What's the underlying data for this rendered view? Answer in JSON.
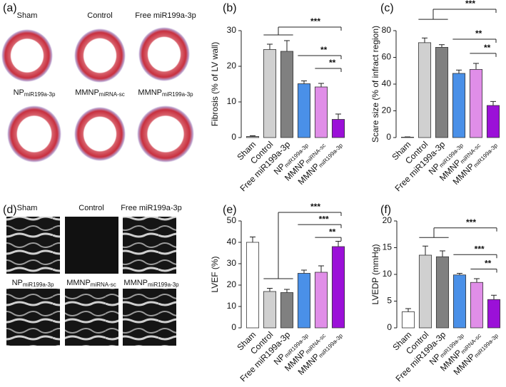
{
  "panels": [
    {
      "label": "(a)",
      "captions": [
        "Sham",
        "Control",
        "Free miR199a-3p",
        {
          "label": "NP",
          "sub": "miR199a-3p"
        },
        {
          "label": "MMNP",
          "sub": "miRNA-sc"
        },
        {
          "label": "MMNP",
          "sub": "miR199a-3p"
        }
      ]
    },
    {
      "label": "(d)",
      "captions": [
        "Sham",
        "Control",
        "Free miR199a-3p",
        {
          "label": "NP",
          "sub": "miR199a-3p"
        },
        {
          "label": "MMNP",
          "sub": "miRNA-sc"
        },
        {
          "label": "MMNP",
          "sub": "miR199a-3p"
        }
      ]
    }
  ],
  "chart_data": [
    {
      "type": "bar",
      "label": "(b)",
      "ylabel": "Fibrosis (% of LV wall)",
      "categories": [
        "Sham",
        "Control",
        "Free miR199a-3p",
        {
          "label": "NP",
          "sub": "miR199a-3p"
        },
        {
          "label": "MMNP",
          "sub": "miRNA-sc"
        },
        {
          "label": "MMNP",
          "sub": "miR199a-3p"
        }
      ],
      "values": [
        0.3,
        24.7,
        24.2,
        15.1,
        14.2,
        5.1
      ],
      "errors": [
        0.2,
        1.5,
        3.0,
        0.8,
        1.0,
        1.5
      ],
      "colors": [
        "#bdbdbd",
        "#d0d0d0",
        "#808080",
        "#4a90e8",
        "#e08ee8",
        "#9b10d8"
      ],
      "ylim": [
        0,
        30
      ],
      "yticks": [
        0,
        10,
        20,
        30
      ],
      "annotations": [
        "***",
        "**",
        "**"
      ]
    },
    {
      "type": "bar",
      "label": "(c)",
      "ylabel": "Scare size (% of infract region)",
      "categories": [
        "Sham",
        "Control",
        "Free miR199a-3p",
        {
          "label": "NP",
          "sub": "miR199a-3p"
        },
        {
          "label": "MMNP",
          "sub": "miRNA-sc"
        },
        {
          "label": "MMNP",
          "sub": "miR199a-3p"
        }
      ],
      "values": [
        0.3,
        71,
        67.5,
        48,
        51,
        24
      ],
      "errors": [
        0.2,
        3.5,
        2.0,
        2.5,
        4.5,
        3.0
      ],
      "colors": [
        "#bdbdbd",
        "#d0d0d0",
        "#808080",
        "#4a90e8",
        "#e08ee8",
        "#9b10d8"
      ],
      "ylim": [
        0,
        80
      ],
      "yticks": [
        0,
        20,
        40,
        60,
        80
      ],
      "annotations": [
        "***",
        "**",
        "**"
      ]
    },
    {
      "type": "bar",
      "label": "(e)",
      "ylabel": "LVEF (%)",
      "categories": [
        "Sham",
        "Control",
        "Free miR199a-3p",
        {
          "label": "NP",
          "sub": "miR199a-3p"
        },
        {
          "label": "MMNP",
          "sub": "miRNA-sc"
        },
        {
          "label": "MMNP",
          "sub": "miR199a-3p"
        }
      ],
      "values": [
        40,
        17,
        16.5,
        25.5,
        26,
        38
      ],
      "errors": [
        2.5,
        1.5,
        1.5,
        1.5,
        3.0,
        2.5
      ],
      "colors": [
        "#ffffff",
        "#d0d0d0",
        "#808080",
        "#4a90e8",
        "#e08ee8",
        "#9b10d8"
      ],
      "ylim": [
        0,
        50
      ],
      "yticks": [
        0,
        10,
        20,
        30,
        40,
        50
      ],
      "annotations": [
        "***",
        "***",
        "**"
      ]
    },
    {
      "type": "bar",
      "label": "(f)",
      "ylabel": "LVEDP (mmHg)",
      "categories": [
        "Sham",
        "Control",
        "Free miR199a-3p",
        {
          "label": "NP",
          "sub": "miR199a-3p"
        },
        {
          "label": "MMNP",
          "sub": "miRNA-sc"
        },
        {
          "label": "MMNP",
          "sub": "miR199a-3p"
        }
      ],
      "values": [
        3,
        13.6,
        13.3,
        9.9,
        8.5,
        5.3
      ],
      "errors": [
        0.6,
        1.7,
        1.1,
        0.3,
        0.7,
        0.8
      ],
      "colors": [
        "#ffffff",
        "#d0d0d0",
        "#808080",
        "#4a90e8",
        "#e08ee8",
        "#9b10d8"
      ],
      "ylim": [
        0,
        20
      ],
      "yticks": [
        0,
        5,
        10,
        15,
        20
      ],
      "annotations": [
        "***",
        "***",
        "**"
      ]
    }
  ]
}
